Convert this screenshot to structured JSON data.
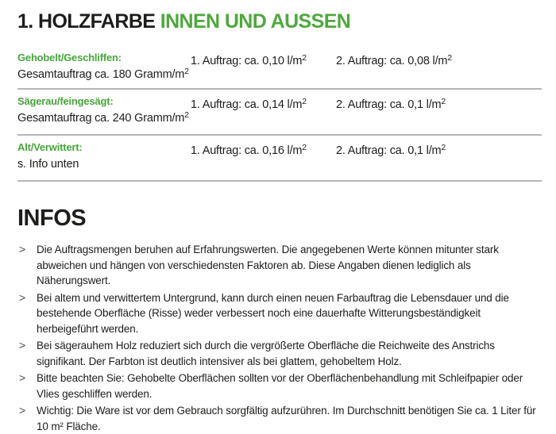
{
  "colors": {
    "accent_green": "#4fa83e",
    "label_green": "#48a53b",
    "body_text": "#1d1d1b",
    "divider_gray": "#b7b7b7",
    "bullet_gray": "#4a4a4a"
  },
  "title": {
    "black_part": "1. HOLZFARBE",
    "green_part": " INNEN UND AUSSEN"
  },
  "table": {
    "rows": [
      {
        "label": "Gehobelt/Geschliffen:",
        "detail": "Gesamtauftrag ca. 180 Gramm/m",
        "detail_sup": "2",
        "coat1": "1. Auftrag: ca. 0,10 l/m",
        "coat1_sup": "2",
        "coat2": "2. Auftrag: ca. 0,08 l/m",
        "coat2_sup": "2"
      },
      {
        "label": "Sägerau/feingesägt:",
        "detail": "Gesamtauftrag ca. 240 Gramm/m",
        "detail_sup": "2",
        "coat1": "1. Auftrag: ca. 0,14 l/m",
        "coat1_sup": "2",
        "coat2": "2. Auftrag: ca. 0,1 l/m",
        "coat2_sup": "2"
      },
      {
        "label": "Alt/Verwittert:",
        "detail": "s. Info unten",
        "detail_sup": "",
        "coat1": "1. Auftrag: ca. 0,16 l/m",
        "coat1_sup": "2",
        "coat2": "2. Auftrag: ca. 0,1 l/m",
        "coat2_sup": "2"
      }
    ]
  },
  "infos": {
    "heading": "INFOS",
    "marker": ">",
    "items": [
      "Die Auftragsmengen beruhen auf Erfahrungswerten. Die angegebenen Werte können mitunter stark abweichen und hängen von verschiedensten Faktoren ab. Diese Angaben dienen lediglich als Näherungswert.",
      "Bei altem und verwittertem Untergrund, kann durch einen neuen Farbauftrag die Lebensdauer und die bestehende Oberfläche (Risse) weder verbessert noch eine dauerhafte Witterungsbeständigkeit herbeigeführt werden.",
      "Bei sägerauhem Holz reduziert sich durch die vergrößerte Oberfläche die Reichweite des Anstrichs signifikant. Der Farbton ist deutlich intensiver als bei glattem, gehobeltem Holz.",
      "Bitte beachten Sie: Gehobelte Oberflächen sollten vor der Oberflächenbehandlung mit Schleifpapier oder Vlies geschliffen werden.",
      "Wichtig: Die Ware ist vor dem Gebrauch sorgfältig aufzurühren. Im Durchschnitt benötigen Sie ca. 1 Liter für 10 m² Fläche."
    ]
  }
}
